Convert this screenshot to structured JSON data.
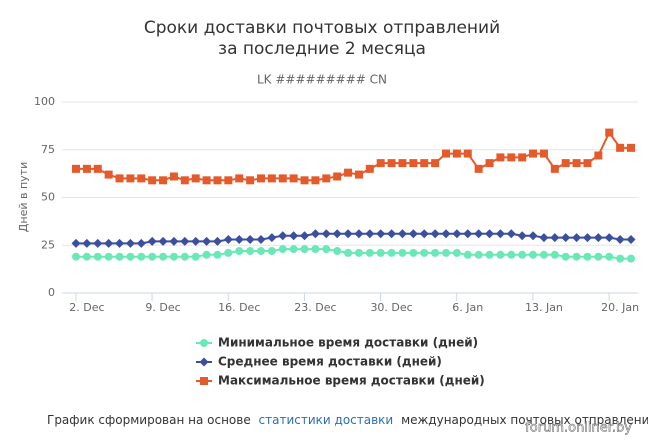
{
  "chart_data": {
    "type": "line",
    "title": [
      "Сроки доставки почтовых отправлений",
      "за последние 2 месяца"
    ],
    "subtitle": "LK ######### CN",
    "y_label": "Дней в пути",
    "categories": [
      null,
      "2. Dec",
      null,
      null,
      null,
      null,
      null,
      null,
      "9. Dec",
      null,
      null,
      null,
      null,
      null,
      null,
      "16. Dec",
      null,
      null,
      null,
      null,
      null,
      null,
      "23. Dec",
      null,
      null,
      null,
      null,
      null,
      null,
      "30. Dec",
      null,
      null,
      null,
      null,
      null,
      null,
      "6. Jan",
      null,
      null,
      null,
      null,
      null,
      null,
      "13. Jan",
      null,
      null,
      null,
      null,
      null,
      null,
      "20. Jan",
      null
    ],
    "series": [
      {
        "name": "Минимальное время доставки (дней)",
        "color": "#6ae8b8",
        "marker": "circle",
        "values": [
          19,
          19,
          19,
          19,
          19,
          19,
          19,
          19,
          19,
          19,
          19,
          19,
          20,
          20,
          21,
          22,
          22,
          22,
          22,
          23,
          23,
          23,
          23,
          23,
          22,
          21,
          21,
          21,
          21,
          21,
          21,
          21,
          21,
          21,
          21,
          21,
          20,
          20,
          20,
          20,
          20,
          20,
          20,
          20,
          20,
          19,
          19,
          19,
          19,
          19,
          18,
          18
        ]
      },
      {
        "name": "Среднее время доставки (дней)",
        "color": "#3b4f9e",
        "marker": "diamond",
        "values": [
          26,
          26,
          26,
          26,
          26,
          26,
          26,
          27,
          27,
          27,
          27,
          27,
          27,
          27,
          28,
          28,
          28,
          28,
          29,
          30,
          30,
          30,
          31,
          31,
          31,
          31,
          31,
          31,
          31,
          31,
          31,
          31,
          31,
          31,
          31,
          31,
          31,
          31,
          31,
          31,
          31,
          30,
          30,
          29,
          29,
          29,
          29,
          29,
          29,
          29,
          28,
          28
        ]
      },
      {
        "name": "Максимальное время доставки (дней)",
        "color": "#e55a2b",
        "marker": "square",
        "values": [
          65,
          65,
          65,
          62,
          60,
          60,
          60,
          59,
          59,
          61,
          59,
          60,
          59,
          59,
          59,
          60,
          59,
          60,
          60,
          60,
          60,
          59,
          59,
          60,
          61,
          63,
          62,
          65,
          68,
          68,
          68,
          68,
          68,
          68,
          73,
          73,
          73,
          65,
          68,
          71,
          71,
          71,
          73,
          73,
          65,
          68,
          68,
          68,
          72,
          84,
          76,
          76
        ]
      }
    ],
    "ylim": [
      0,
      100
    ],
    "yticks": [
      0,
      25,
      50,
      75,
      100
    ],
    "grid": true,
    "legend": "bottom"
  },
  "footer": {
    "before": "График сформирован на основе",
    "link": "статистики доставки",
    "after": "международных почтовых отправлений"
  },
  "watermark": "forum.onliner.by"
}
